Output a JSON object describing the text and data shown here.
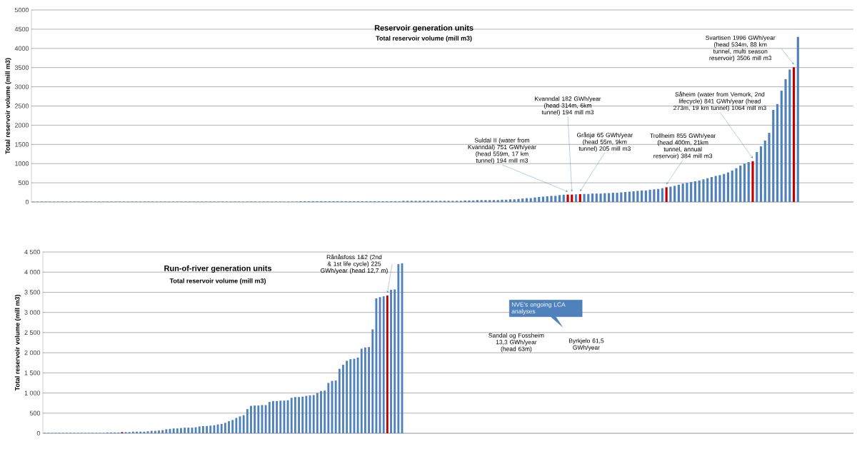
{
  "chart_data": [
    {
      "type": "bar",
      "title": "Reservoir generation units",
      "subtitle": "Total reservoir volume (mill m3)",
      "ylabel": "Total reservoir volume (mill m3)",
      "categories": [
        null,
        null,
        null,
        null,
        null,
        null,
        null,
        null,
        null,
        null,
        null,
        null,
        null,
        null,
        null,
        null,
        null,
        null,
        null,
        null,
        null,
        null,
        null,
        null,
        null,
        null,
        null,
        null,
        null,
        null,
        null,
        null,
        null,
        null,
        null,
        null,
        null,
        null,
        null,
        null,
        null,
        null,
        null,
        null,
        null,
        null,
        null,
        null,
        null,
        null,
        null,
        null,
        null,
        null,
        null,
        null,
        null,
        null,
        null,
        null,
        null,
        null,
        null,
        null,
        null,
        null,
        null,
        null,
        null,
        null,
        null,
        null,
        null,
        null,
        null,
        null,
        null,
        null,
        null,
        null,
        null,
        null,
        null,
        null,
        null,
        null,
        null,
        null,
        null,
        null,
        null,
        null,
        null,
        null,
        null,
        null,
        null,
        null,
        null,
        null,
        null,
        null,
        null,
        null,
        null,
        null,
        null,
        null,
        null,
        null,
        null,
        null,
        null,
        null,
        null,
        null,
        null,
        null,
        null,
        null,
        null,
        null,
        null,
        null,
        null,
        null,
        null,
        null,
        null,
        null,
        null,
        null,
        null,
        null,
        null,
        null,
        null,
        null,
        null,
        null,
        null,
        null,
        null,
        null,
        null,
        null,
        null,
        null,
        null,
        null,
        null,
        null,
        null,
        null,
        null,
        null,
        null,
        null,
        null,
        null,
        null,
        null,
        null,
        null,
        null,
        null,
        null,
        null,
        null,
        null,
        null,
        null,
        null,
        null,
        null,
        null,
        null,
        null,
        null,
        null,
        null,
        null,
        null,
        null,
        null,
        null,
        null,
        null,
        null,
        null,
        null,
        null,
        null,
        null,
        null,
        null,
        null,
        null,
        null,
        null
      ],
      "values": [
        10,
        10,
        10,
        10,
        10,
        10,
        10,
        10,
        10,
        10,
        10,
        10,
        10,
        10,
        10,
        10,
        10,
        10,
        10,
        10,
        10,
        10,
        10,
        10,
        10,
        10,
        10,
        10,
        10,
        10,
        10,
        10,
        10,
        10,
        10,
        10,
        10,
        10,
        10,
        10,
        10,
        10,
        10,
        10,
        10,
        10,
        10,
        10,
        10,
        10,
        10,
        10,
        10,
        10,
        10,
        10,
        10,
        10,
        10,
        10,
        10,
        10,
        10,
        10,
        10,
        20,
        20,
        20,
        20,
        20,
        20,
        20,
        20,
        20,
        20,
        20,
        20,
        20,
        20,
        20,
        20,
        20,
        20,
        20,
        20,
        20,
        20,
        20,
        20,
        20,
        30,
        30,
        30,
        30,
        30,
        30,
        30,
        30,
        30,
        30,
        30,
        30,
        30,
        30,
        30,
        40,
        40,
        40,
        50,
        50,
        50,
        50,
        50,
        50,
        60,
        60,
        70,
        70,
        80,
        90,
        100,
        100,
        120,
        130,
        140,
        150,
        160,
        160,
        180,
        190,
        194,
        194,
        200,
        205,
        210,
        210,
        220,
        220,
        220,
        230,
        230,
        240,
        240,
        250,
        260,
        270,
        280,
        290,
        300,
        300,
        320,
        330,
        340,
        360,
        384,
        400,
        420,
        450,
        480,
        500,
        520,
        540,
        560,
        590,
        620,
        650,
        680,
        700,
        730,
        770,
        820,
        880,
        950,
        1000,
        1040,
        1064,
        1300,
        1450,
        1600,
        1800,
        2400,
        2550,
        2900,
        3200,
        3450,
        3506,
        4300,
        null,
        null,
        null,
        null,
        null,
        null,
        null,
        null,
        null,
        null,
        null,
        null,
        null
      ],
      "colors": [
        "#4f81bd",
        "#4f81bd",
        "#4f81bd",
        "#4f81bd",
        "#4f81bd",
        "#4f81bd",
        "#4f81bd",
        "#4f81bd",
        "#4f81bd",
        "#4f81bd",
        "#4f81bd",
        "#4f81bd",
        "#4f81bd",
        "#4f81bd",
        "#4f81bd",
        "#4f81bd",
        "#4f81bd",
        "#4f81bd",
        "#4f81bd",
        "#4f81bd",
        "#4f81bd",
        "#4f81bd",
        "#4f81bd",
        "#4f81bd",
        "#4f81bd",
        "#4f81bd",
        "#4f81bd",
        "#4f81bd",
        "#4f81bd",
        "#4f81bd",
        "#4f81bd",
        "#4f81bd",
        "#4f81bd",
        "#4f81bd",
        "#4f81bd",
        "#4f81bd",
        "#4f81bd",
        "#4f81bd",
        "#4f81bd",
        "#4f81bd",
        "#4f81bd",
        "#4f81bd",
        "#4f81bd",
        "#4f81bd",
        "#4f81bd",
        "#4f81bd",
        "#4f81bd",
        "#4f81bd",
        "#4f81bd",
        "#4f81bd",
        "#4f81bd",
        "#4f81bd",
        "#4f81bd",
        "#4f81bd",
        "#4f81bd",
        "#4f81bd",
        "#4f81bd",
        "#4f81bd",
        "#4f81bd",
        "#4f81bd",
        "#4f81bd",
        "#4f81bd",
        "#4f81bd",
        "#4f81bd",
        "#4f81bd",
        "#4f81bd",
        "#4f81bd",
        "#4f81bd",
        "#4f81bd",
        "#4f81bd",
        "#4f81bd",
        "#4f81bd",
        "#4f81bd",
        "#4f81bd",
        "#4f81bd",
        "#4f81bd",
        "#4f81bd",
        "#4f81bd",
        "#4f81bd",
        "#4f81bd",
        "#4f81bd",
        "#4f81bd",
        "#4f81bd",
        "#4f81bd",
        "#4f81bd",
        "#4f81bd",
        "#4f81bd",
        "#4f81bd",
        "#4f81bd",
        "#4f81bd",
        "#4f81bd",
        "#4f81bd",
        "#4f81bd",
        "#4f81bd",
        "#4f81bd",
        "#4f81bd",
        "#4f81bd",
        "#4f81bd",
        "#4f81bd",
        "#4f81bd",
        "#4f81bd",
        "#4f81bd",
        "#4f81bd",
        "#4f81bd",
        "#4f81bd",
        "#4f81bd",
        "#4f81bd",
        "#4f81bd",
        "#4f81bd",
        "#4f81bd",
        "#4f81bd",
        "#4f81bd",
        "#4f81bd",
        "#4f81bd",
        "#4f81bd",
        "#4f81bd",
        "#4f81bd",
        "#4f81bd",
        "#4f81bd",
        "#4f81bd",
        "#4f81bd",
        "#4f81bd",
        "#4f81bd",
        "#4f81bd",
        "#4f81bd",
        "#4f81bd",
        "#4f81bd",
        "#4f81bd",
        "#4f81bd",
        "#4f81bd",
        "#c00000",
        "#c00000",
        "#4f81bd",
        "#c00000",
        "#4f81bd",
        "#4f81bd",
        "#4f81bd",
        "#4f81bd",
        "#4f81bd",
        "#4f81bd",
        "#4f81bd",
        "#4f81bd",
        "#4f81bd",
        "#4f81bd",
        "#4f81bd",
        "#4f81bd",
        "#4f81bd",
        "#4f81bd",
        "#4f81bd",
        "#4f81bd",
        "#4f81bd",
        "#4f81bd",
        "#4f81bd",
        "#4f81bd",
        "#c00000",
        "#4f81bd",
        "#4f81bd",
        "#4f81bd",
        "#4f81bd",
        "#4f81bd",
        "#4f81bd",
        "#4f81bd",
        "#4f81bd",
        "#4f81bd",
        "#4f81bd",
        "#4f81bd",
        "#4f81bd",
        "#4f81bd",
        "#4f81bd",
        "#4f81bd",
        "#4f81bd",
        "#4f81bd",
        "#4f81bd",
        "#4f81bd",
        "#4f81bd",
        "#c00000",
        "#4f81bd",
        "#4f81bd",
        "#4f81bd",
        "#4f81bd",
        "#4f81bd",
        "#4f81bd",
        "#4f81bd",
        "#4f81bd",
        "#4f81bd",
        "#c00000",
        "#4f81bd",
        "#4f81bd",
        "#4f81bd",
        "#4f81bd",
        "#4f81bd",
        "#4f81bd",
        "#4f81bd",
        "#4f81bd",
        "#4f81bd",
        "#4f81bd",
        "#4f81bd",
        "#4f81bd",
        "#4f81bd",
        "#4f81bd"
      ],
      "ylim": [
        0,
        5000
      ],
      "yticks": [
        0,
        500,
        1000,
        1500,
        2000,
        2500,
        3000,
        3500,
        4000,
        4500,
        5000
      ],
      "grid": "y",
      "annotations": [
        "Suldal II (water from Kvanndal) 751 GWh/year (head 559m, 17 km tunnel) 194 mill m3",
        "Kvanndal 182 GWh/year (head 314m, 6km tunnel) 194 mill m3",
        "Gråsjø 65 GWh/year (head 55m, 9km tunnel) 205 mill m3",
        "Trollheim 855 GWh/year (head 400m, 21km tunnel, annual reservoir) 384 mill m3",
        "Såheim (water from Vemork, 2nd lifecycle) 841 GWh/year (head 273m, 19 km tunnel) 1064 mill m3",
        "Svartisen 1996 GWh/year (head 534m, 88 km tunnel, multi season reservoir) 3506 mill m3"
      ]
    },
    {
      "type": "bar",
      "title": "Run-of-river generation units",
      "subtitle": "Total reservoir volume (mill m3)",
      "ylabel": "Total reservoir volume (mill m3)",
      "categories": [
        null,
        null,
        null,
        null,
        null,
        null,
        null,
        null,
        null,
        null,
        null,
        null,
        null,
        null,
        null,
        null,
        null,
        null,
        null,
        null,
        null,
        null,
        null,
        null,
        null,
        null,
        null,
        null,
        null,
        null,
        null,
        null,
        null,
        null,
        null,
        null,
        null,
        null,
        null,
        null,
        null,
        null,
        null,
        null,
        null,
        null,
        null,
        null,
        null,
        null,
        null,
        null,
        null,
        null,
        null,
        null,
        null,
        null,
        null,
        null,
        null,
        null,
        null,
        null,
        null,
        null,
        null,
        null,
        null,
        null,
        null,
        null,
        null,
        null,
        null,
        null,
        null,
        null,
        null,
        null,
        null,
        null,
        null,
        null,
        null,
        null,
        null,
        null,
        null,
        null,
        null,
        null,
        null,
        null,
        null,
        null,
        null,
        null,
        null,
        null,
        null,
        null,
        null,
        null,
        null,
        null,
        null,
        null,
        null,
        null,
        null,
        null,
        null,
        null,
        null,
        null,
        null,
        null,
        null,
        null,
        null,
        null,
        null,
        null,
        null,
        null,
        null,
        null,
        null,
        null,
        null,
        null,
        null,
        null,
        null,
        null,
        null,
        null,
        null,
        null,
        null,
        null,
        null,
        null,
        null,
        null,
        null,
        null,
        null,
        null,
        null,
        null,
        null,
        null,
        null,
        null,
        null,
        null,
        null,
        null,
        null,
        null,
        null,
        null,
        null,
        null,
        null,
        null,
        null,
        null,
        null,
        null,
        null,
        null,
        null,
        null,
        null,
        null,
        null,
        null,
        null,
        null,
        null,
        null,
        null,
        null,
        null,
        null,
        null,
        null,
        null,
        null,
        null,
        null,
        null,
        null,
        null,
        null,
        null,
        null,
        null,
        null,
        null,
        null,
        null,
        null,
        null,
        null,
        null,
        null,
        null,
        null,
        null,
        null,
        null,
        null,
        null,
        null,
        null,
        null
      ],
      "values": [
        10,
        10,
        10,
        10,
        10,
        10,
        10,
        10,
        10,
        10,
        10,
        10,
        10,
        10,
        10,
        10,
        10,
        20,
        20,
        20,
        20,
        30,
        30,
        30,
        40,
        40,
        40,
        40,
        50,
        60,
        60,
        70,
        80,
        100,
        110,
        120,
        120,
        130,
        140,
        140,
        140,
        150,
        170,
        180,
        180,
        190,
        200,
        220,
        230,
        260,
        300,
        330,
        380,
        420,
        450,
        600,
        680,
        690,
        690,
        700,
        700,
        780,
        800,
        800,
        810,
        810,
        820,
        880,
        900,
        900,
        910,
        930,
        940,
        950,
        1000,
        1050,
        1060,
        1250,
        1300,
        1310,
        1600,
        1700,
        1800,
        1840,
        1850,
        1880,
        2100,
        2130,
        2140,
        2580,
        3350,
        3380,
        3400,
        3420,
        3560,
        3570,
        4200,
        4220,
        null,
        null,
        null,
        null,
        null,
        null,
        null,
        null,
        null,
        null,
        null,
        null,
        null,
        null,
        null,
        null,
        null,
        null,
        null,
        null,
        null,
        null,
        null,
        null,
        null,
        null,
        null,
        null,
        null,
        null,
        null,
        null,
        null,
        null,
        null,
        null,
        null,
        null,
        null,
        null,
        null,
        null,
        null,
        null,
        null,
        null,
        null,
        null,
        null,
        null,
        null,
        null,
        null,
        null,
        null,
        null,
        null,
        null,
        null,
        null,
        null,
        null,
        null,
        null,
        null,
        null,
        null,
        null,
        null,
        null,
        null,
        null,
        null,
        null,
        null,
        null,
        null,
        null,
        null,
        null,
        null,
        null,
        null,
        null,
        null,
        null,
        null,
        null,
        null,
        null,
        null,
        null,
        null,
        null,
        null,
        null,
        null,
        null,
        null,
        null,
        null,
        null,
        null,
        null,
        null,
        null,
        null,
        null,
        null,
        null,
        null,
        null,
        null,
        null,
        null,
        null,
        null,
        null,
        null,
        null,
        null,
        null
      ],
      "colors": [
        "#4f81bd",
        "#4f81bd",
        "#4f81bd",
        "#4f81bd",
        "#4f81bd",
        "#4f81bd",
        "#4f81bd",
        "#4f81bd",
        "#4f81bd",
        "#4f81bd",
        "#4f81bd",
        "#4f81bd",
        "#4f81bd",
        "#4f81bd",
        "#4f81bd",
        "#4f81bd",
        "#4f81bd",
        "#4f81bd",
        "#4f81bd",
        "#4f81bd",
        "#4f81bd",
        "#c00000",
        "#4f81bd",
        "#4f81bd",
        "#4f81bd",
        "#4f81bd",
        "#4f81bd",
        "#4f81bd",
        "#4f81bd",
        "#4f81bd",
        "#4f81bd",
        "#4f81bd",
        "#4f81bd",
        "#4f81bd",
        "#4f81bd",
        "#4f81bd",
        "#4f81bd",
        "#4f81bd",
        "#4f81bd",
        "#4f81bd",
        "#4f81bd",
        "#4f81bd",
        "#4f81bd",
        "#4f81bd",
        "#4f81bd",
        "#4f81bd",
        "#4f81bd",
        "#4f81bd",
        "#4f81bd",
        "#4f81bd",
        "#4f81bd",
        "#4f81bd",
        "#4f81bd",
        "#4f81bd",
        "#4f81bd",
        "#4f81bd",
        "#4f81bd",
        "#4f81bd",
        "#4f81bd",
        "#4f81bd",
        "#4f81bd",
        "#4f81bd",
        "#4f81bd",
        "#4f81bd",
        "#4f81bd",
        "#4f81bd",
        "#4f81bd",
        "#4f81bd",
        "#4f81bd",
        "#4f81bd",
        "#4f81bd",
        "#4f81bd",
        "#4f81bd",
        "#4f81bd",
        "#4f81bd",
        "#4f81bd",
        "#4f81bd",
        "#4f81bd",
        "#4f81bd",
        "#4f81bd",
        "#4f81bd",
        "#4f81bd",
        "#4f81bd",
        "#4f81bd",
        "#4f81bd",
        "#4f81bd",
        "#4f81bd",
        "#4f81bd",
        "#4f81bd",
        "#4f81bd",
        "#4f81bd",
        "#4f81bd",
        "#4f81bd",
        "#c00000",
        "#4f81bd",
        "#4f81bd",
        "#4f81bd",
        "#4f81bd",
        "#4f81bd",
        "#4f81bd",
        "#4f81bd",
        "#4f81bd",
        "#4f81bd",
        "#4f81bd",
        "#4f81bd",
        "#4f81bd",
        "#4f81bd",
        "#4f81bd",
        "#4f81bd",
        "#4f81bd",
        "#4f81bd",
        "#4f81bd",
        "#4f81bd",
        "#4f81bd",
        "#4f81bd",
        "#4f81bd",
        "#4f81bd",
        "#4f81bd",
        "#4f81bd",
        "#4f81bd",
        "#4f81bd",
        "#4f81bd",
        "#4f81bd",
        "#4f81bd",
        "#4f81bd",
        "#4f81bd",
        "#4f81bd",
        "#4f81bd",
        "#4f81bd",
        "#4f81bd",
        "#4f81bd",
        "#4f81bd",
        "#4f81bd",
        "#4f81bd",
        "#4f81bd",
        "#4f81bd",
        "#4f81bd",
        "#4f81bd",
        "#4f81bd",
        "#4f81bd",
        "#4f81bd",
        "#4f81bd",
        "#4f81bd",
        "#4f81bd",
        "#4f81bd",
        "#4f81bd",
        "#4f81bd",
        "#4f81bd",
        "#4f81bd",
        "#4f81bd",
        "#4f81bd",
        "#4f81bd",
        "#4f81bd",
        "#4f81bd",
        "#4f81bd",
        "#4f81bd",
        "#4f81bd",
        "#4f81bd",
        "#4f81bd",
        "#4f81bd",
        "#4f81bd",
        "#4f81bd",
        "#4f81bd",
        "#4f81bd",
        "#4f81bd",
        "#4f81bd",
        "#4f81bd",
        "#4f81bd",
        "#4f81bd",
        "#4f81bd",
        "#4f81bd",
        "#4f81bd",
        "#4f81bd",
        "#4f81bd",
        "#4f81bd",
        "#4f81bd",
        "#4f81bd",
        "#4f81bd",
        "#4f81bd",
        "#4f81bd",
        "#4f81bd",
        "#4f81bd",
        "#4f81bd",
        "#4f81bd",
        "#4f81bd",
        "#4f81bd",
        "#4f81bd",
        "#4f81bd",
        "#4f81bd",
        "#4f81bd",
        "#4f81bd",
        "#4f81bd",
        "#4f81bd",
        "#4f81bd",
        "#4f81bd",
        "#4f81bd",
        "#4f81bd",
        "#4f81bd",
        "#4f81bd",
        "#4f81bd",
        "#4f81bd",
        "#4f81bd",
        "#4f81bd",
        "#4f81bd",
        "#4f81bd",
        "#4f81bd",
        "#4f81bd",
        "#4f81bd",
        "#4f81bd",
        "#4f81bd",
        "#4f81bd",
        "#4f81bd",
        "#4f81bd",
        "#4f81bd",
        "#4f81bd",
        "#4f81bd",
        "#4f81bd",
        "#4f81bd",
        "#4f81bd",
        "#4f81bd"
      ],
      "ylim": [
        0,
        4500
      ],
      "yticks": [
        0,
        500,
        {
          "value": 1000,
          "label": "1 000"
        },
        {
          "value": 1500,
          "label": "1 500"
        },
        {
          "value": 2000,
          "label": "2 000"
        },
        {
          "value": 2500,
          "label": "2 500"
        },
        {
          "value": 3000,
          "label": "3 000"
        },
        {
          "value": 3500,
          "label": "3 500"
        },
        {
          "value": 4000,
          "label": "4 000"
        },
        {
          "value": 4500,
          "label": "4 500"
        }
      ],
      "grid": "y",
      "annotations": [
        "Rånåsfoss 1&2 (2nd & 1st life cycle) 225 GWh/year (head 12,7 m)",
        "NVE's ongoing LCA analyses",
        "Sandal og Fossheim 13,3 GWh/year (head 63m)",
        "Byrkjelo 61,5 GWh/year"
      ]
    }
  ]
}
